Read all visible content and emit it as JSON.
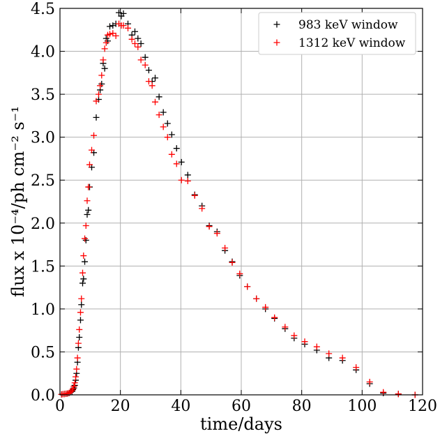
{
  "chart_data": {
    "type": "scatter",
    "title": "",
    "xlabel": "time/days",
    "ylabel": "flux x 10⁻⁴/ph cm⁻² s⁻¹",
    "xlim": [
      0,
      120
    ],
    "ylim": [
      0,
      4.5
    ],
    "x_ticks": [
      "0",
      "20",
      "40",
      "60",
      "80",
      "100",
      "120"
    ],
    "y_ticks": [
      "0.0",
      "0.5",
      "1.0",
      "1.5",
      "2.0",
      "2.5",
      "3.0",
      "3.5",
      "4.0",
      "4.5"
    ],
    "grid": true,
    "legend_position": "top-right",
    "series": [
      {
        "name": "983 keV window",
        "color": "#000000",
        "marker": "plus",
        "points": [
          [
            0.5,
            0.005
          ],
          [
            1.0,
            0.008
          ],
          [
            1.5,
            0.01
          ],
          [
            2.0,
            0.012
          ],
          [
            2.5,
            0.015
          ],
          [
            3.0,
            0.02
          ],
          [
            3.5,
            0.03
          ],
          [
            4.0,
            0.04
          ],
          [
            4.3,
            0.06
          ],
          [
            4.6,
            0.08
          ],
          [
            4.9,
            0.11
          ],
          [
            5.2,
            0.17
          ],
          [
            5.5,
            0.25
          ],
          [
            5.8,
            0.38
          ],
          [
            6.1,
            0.55
          ],
          [
            6.4,
            0.67
          ],
          [
            6.8,
            0.87
          ],
          [
            7.1,
            1.05
          ],
          [
            7.5,
            1.3
          ],
          [
            7.8,
            1.35
          ],
          [
            8.2,
            1.55
          ],
          [
            8.6,
            1.8
          ],
          [
            9.0,
            2.1
          ],
          [
            9.4,
            2.15
          ],
          [
            9.8,
            2.42
          ],
          [
            10.5,
            2.65
          ],
          [
            11.2,
            2.82
          ],
          [
            12.0,
            3.23
          ],
          [
            12.8,
            3.44
          ],
          [
            13.3,
            3.55
          ],
          [
            13.8,
            3.62
          ],
          [
            14.3,
            3.86
          ],
          [
            14.8,
            3.8
          ],
          [
            15.3,
            4.15
          ],
          [
            15.8,
            4.12
          ],
          [
            16.5,
            4.29
          ],
          [
            17.5,
            4.3
          ],
          [
            18.5,
            4.32
          ],
          [
            19.5,
            4.45
          ],
          [
            20.3,
            4.41
          ],
          [
            21.0,
            4.44
          ],
          [
            22.5,
            4.32
          ],
          [
            23.8,
            4.19
          ],
          [
            24.8,
            4.23
          ],
          [
            25.8,
            4.15
          ],
          [
            26.8,
            4.09
          ],
          [
            28.2,
            3.93
          ],
          [
            29.4,
            3.78
          ],
          [
            30.5,
            3.65
          ],
          [
            31.5,
            3.69
          ],
          [
            32.8,
            3.47
          ],
          [
            34.2,
            3.29
          ],
          [
            35.6,
            3.16
          ],
          [
            37.0,
            3.03
          ],
          [
            38.6,
            2.87
          ],
          [
            40.2,
            2.71
          ],
          [
            42.3,
            2.56
          ],
          [
            44.6,
            2.33
          ],
          [
            47.0,
            2.2
          ],
          [
            49.4,
            1.97
          ],
          [
            52.0,
            1.9
          ],
          [
            54.6,
            1.68
          ],
          [
            57.0,
            1.55
          ],
          [
            59.5,
            1.39
          ],
          [
            62.0,
            1.26
          ],
          [
            65.0,
            1.12
          ],
          [
            68.0,
            1.0
          ],
          [
            71.0,
            0.89
          ],
          [
            74.5,
            0.77
          ],
          [
            77.5,
            0.66
          ],
          [
            81.0,
            0.59
          ],
          [
            85.0,
            0.52
          ],
          [
            89.0,
            0.43
          ],
          [
            93.5,
            0.4
          ],
          [
            98.0,
            0.29
          ],
          [
            102.5,
            0.13
          ],
          [
            107.0,
            0.02
          ],
          [
            112.0,
            0.01
          ],
          [
            117.5,
            0.0
          ]
        ]
      },
      {
        "name": "1312 keV window",
        "color": "#ff0000",
        "marker": "plus",
        "points": [
          [
            0.5,
            0.005
          ],
          [
            1.0,
            0.008
          ],
          [
            1.5,
            0.01
          ],
          [
            2.0,
            0.013
          ],
          [
            2.5,
            0.017
          ],
          [
            3.0,
            0.022
          ],
          [
            3.5,
            0.035
          ],
          [
            4.0,
            0.05
          ],
          [
            4.3,
            0.07
          ],
          [
            4.6,
            0.1
          ],
          [
            4.9,
            0.14
          ],
          [
            5.2,
            0.21
          ],
          [
            5.5,
            0.3
          ],
          [
            5.8,
            0.43
          ],
          [
            6.1,
            0.6
          ],
          [
            6.4,
            0.76
          ],
          [
            6.8,
            0.96
          ],
          [
            7.1,
            1.12
          ],
          [
            7.5,
            1.42
          ],
          [
            7.8,
            1.62
          ],
          [
            8.2,
            1.82
          ],
          [
            8.6,
            1.97
          ],
          [
            9.0,
            2.26
          ],
          [
            9.4,
            2.42
          ],
          [
            9.8,
            2.68
          ],
          [
            10.5,
            2.85
          ],
          [
            11.2,
            3.02
          ],
          [
            12.0,
            3.42
          ],
          [
            12.8,
            3.5
          ],
          [
            13.3,
            3.6
          ],
          [
            13.8,
            3.72
          ],
          [
            14.3,
            3.9
          ],
          [
            14.8,
            4.03
          ],
          [
            15.3,
            4.1
          ],
          [
            15.8,
            4.19
          ],
          [
            16.5,
            4.2
          ],
          [
            17.5,
            4.21
          ],
          [
            18.5,
            4.18
          ],
          [
            19.5,
            4.32
          ],
          [
            20.3,
            4.3
          ],
          [
            21.0,
            4.3
          ],
          [
            22.5,
            4.27
          ],
          [
            23.8,
            4.14
          ],
          [
            24.8,
            4.09
          ],
          [
            25.8,
            4.05
          ],
          [
            26.8,
            3.9
          ],
          [
            28.2,
            3.84
          ],
          [
            29.4,
            3.65
          ],
          [
            30.5,
            3.6
          ],
          [
            31.5,
            3.41
          ],
          [
            32.8,
            3.26
          ],
          [
            34.2,
            3.12
          ],
          [
            35.6,
            3.0
          ],
          [
            37.0,
            2.8
          ],
          [
            38.6,
            2.69
          ],
          [
            40.2,
            2.5
          ],
          [
            42.3,
            2.49
          ],
          [
            44.6,
            2.32
          ],
          [
            47.0,
            2.17
          ],
          [
            49.4,
            1.96
          ],
          [
            52.0,
            1.88
          ],
          [
            54.6,
            1.71
          ],
          [
            57.0,
            1.54
          ],
          [
            59.5,
            1.41
          ],
          [
            62.0,
            1.26
          ],
          [
            65.0,
            1.12
          ],
          [
            68.0,
            1.02
          ],
          [
            71.0,
            0.9
          ],
          [
            74.5,
            0.79
          ],
          [
            77.5,
            0.69
          ],
          [
            81.0,
            0.62
          ],
          [
            85.0,
            0.56
          ],
          [
            89.0,
            0.48
          ],
          [
            93.5,
            0.43
          ],
          [
            98.0,
            0.32
          ],
          [
            102.5,
            0.15
          ],
          [
            107.0,
            0.03
          ],
          [
            112.0,
            0.01
          ],
          [
            117.5,
            0.0
          ]
        ]
      }
    ]
  }
}
